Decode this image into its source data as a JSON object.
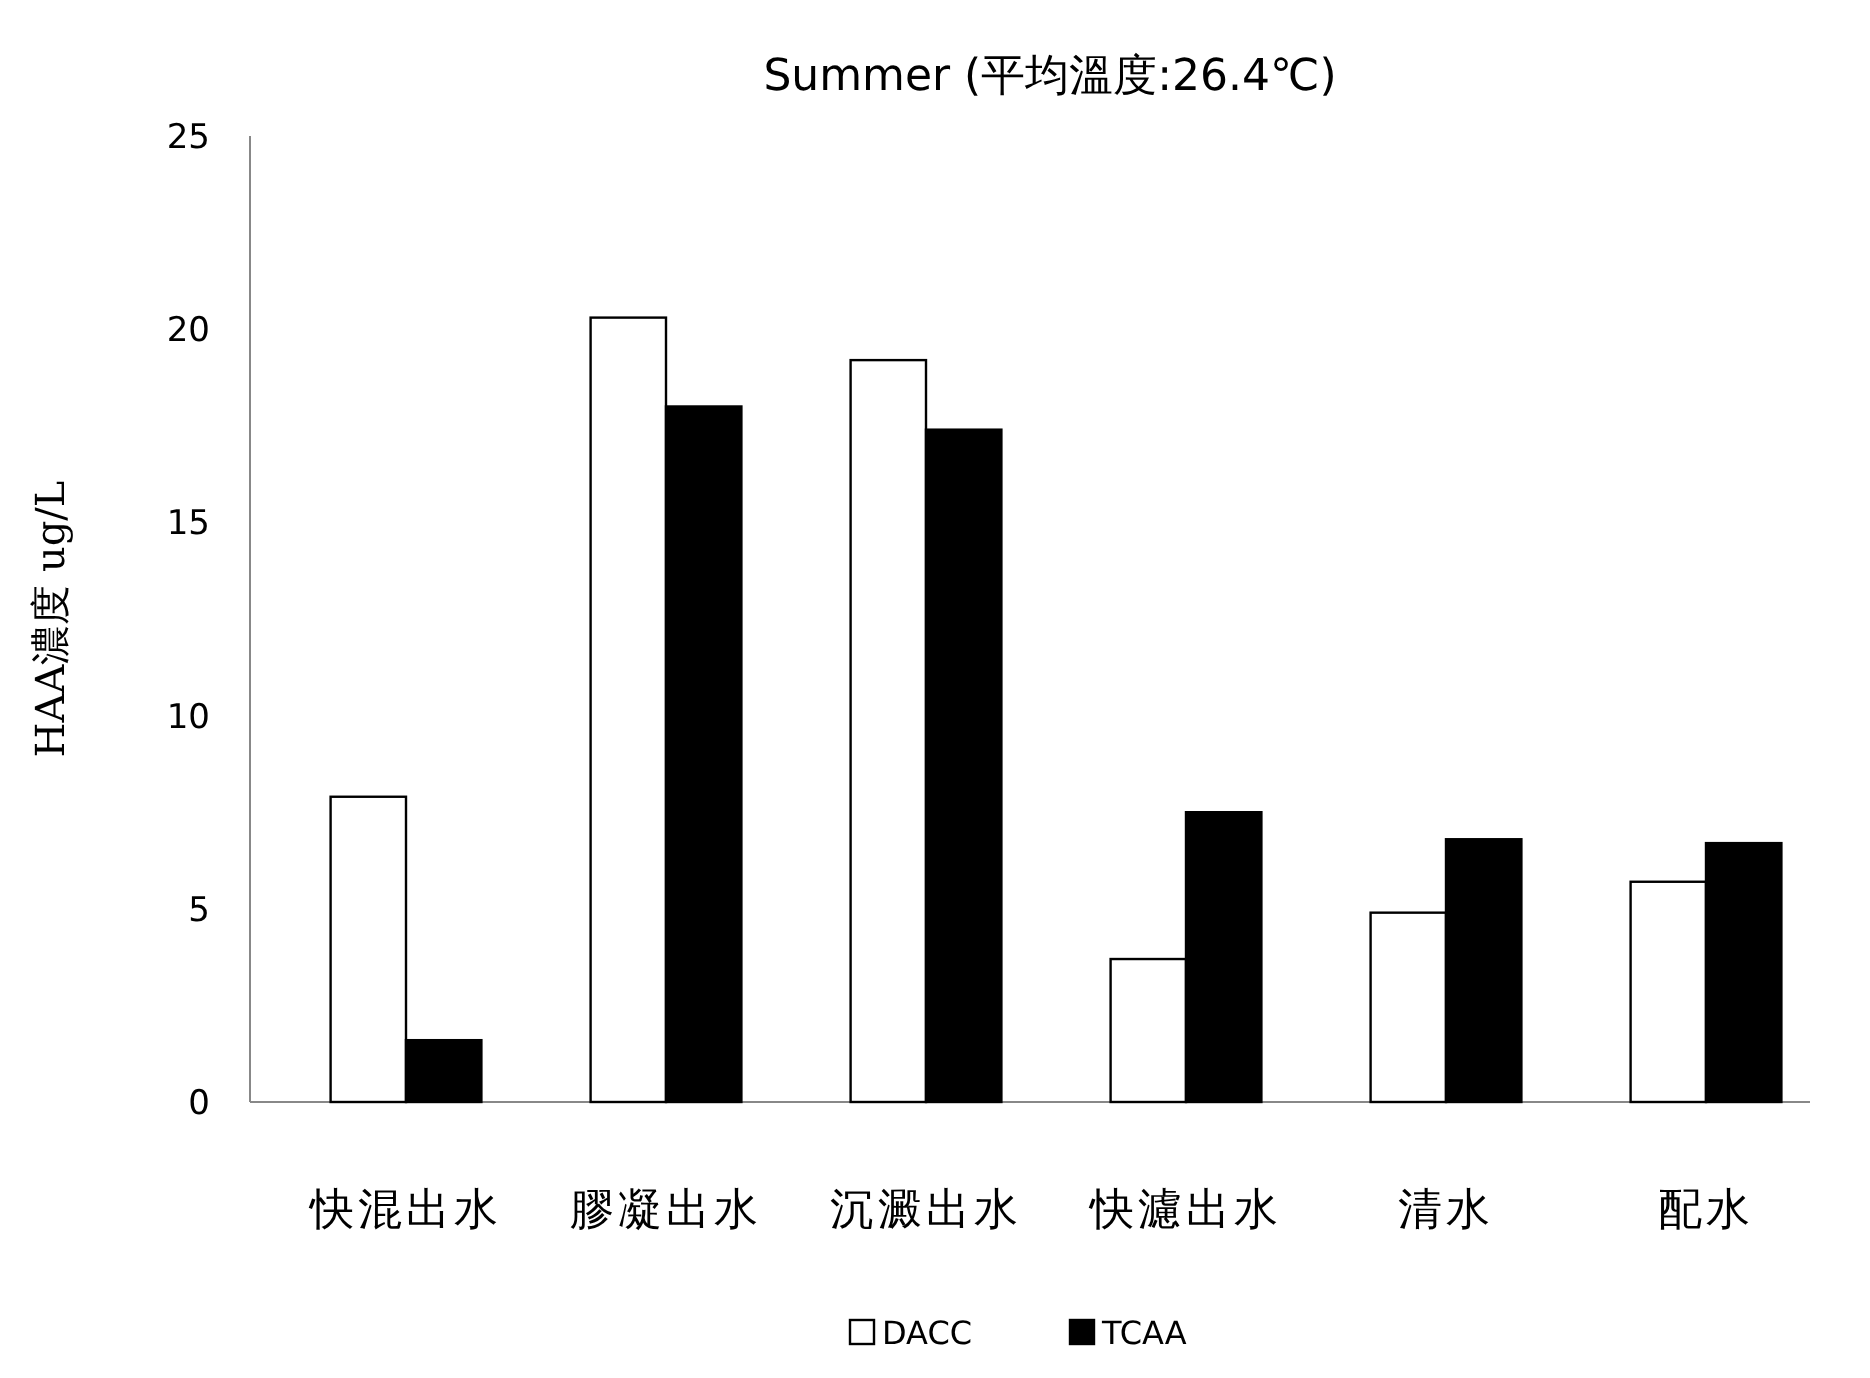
{
  "chart_data": {
    "type": "bar",
    "title": "Summer (平均溫度:26.4℃)",
    "ylabel": "HAA濃度 ug/L",
    "categories": [
      "快混出水",
      "膠凝出水",
      "沉澱出水",
      "快濾出水",
      "清水",
      "配水"
    ],
    "series": [
      {
        "name": "DACC",
        "color": "#ffffff",
        "values": [
          7.9,
          20.3,
          19.2,
          3.7,
          4.9,
          5.7
        ]
      },
      {
        "name": "TCAA",
        "color": "#000000",
        "values": [
          1.6,
          18.0,
          17.4,
          7.5,
          6.8,
          6.7
        ]
      }
    ],
    "ylim": [
      0,
      25
    ],
    "yticks": [
      0,
      5,
      10,
      15,
      20,
      25
    ],
    "legend": "bottom"
  }
}
